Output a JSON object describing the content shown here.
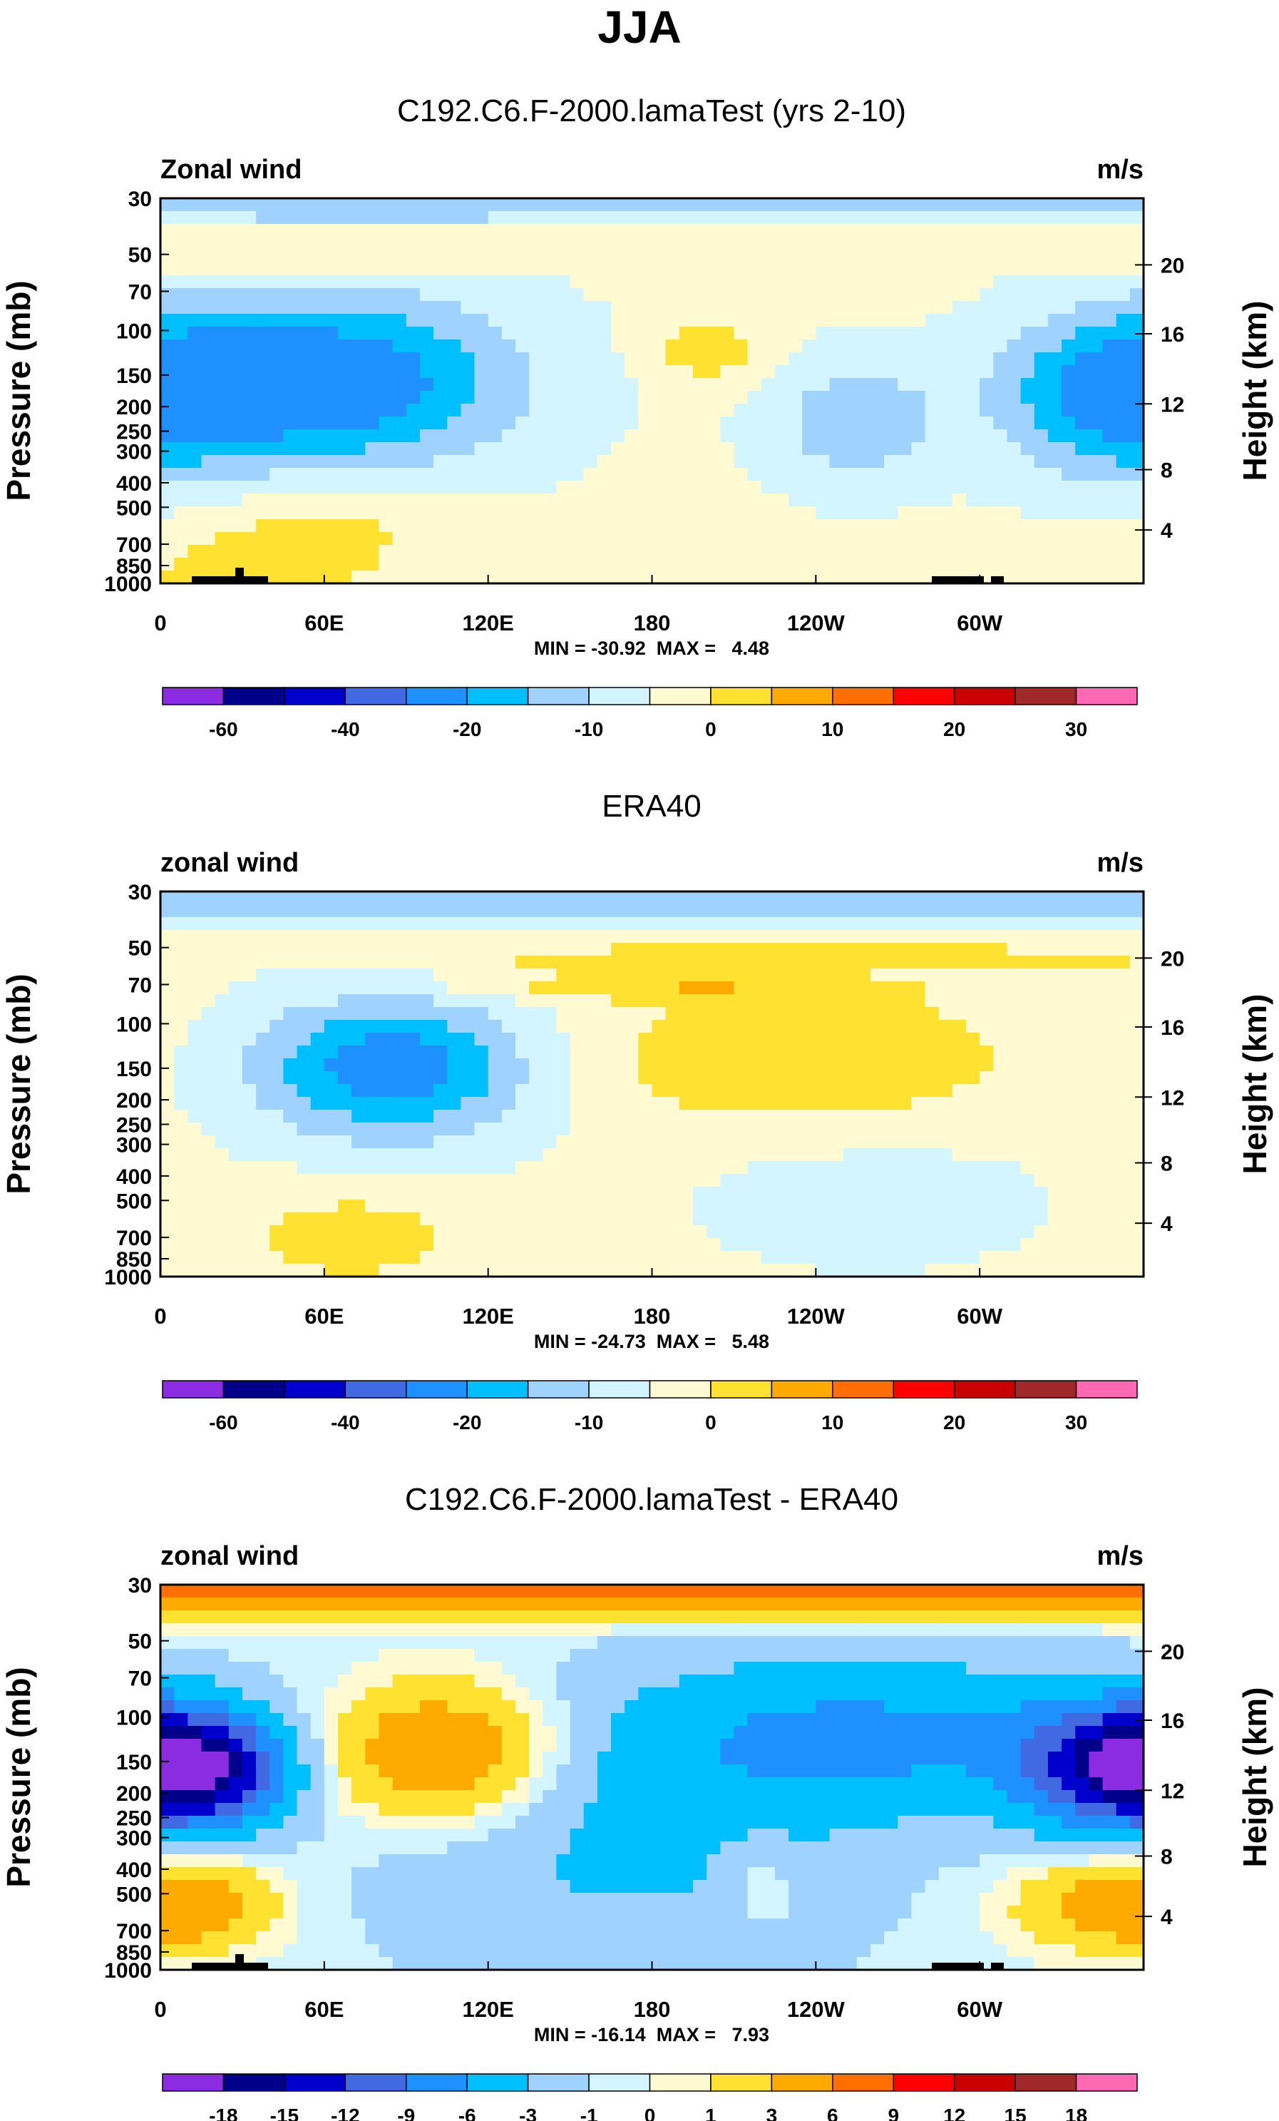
{
  "title": "JJA",
  "colors": {
    "main": [
      "#8b2be2",
      "#00008b",
      "#0000cd",
      "#4169e1",
      "#1e90ff",
      "#00bfff",
      "#a0d2ff",
      "#d2f5ff",
      "#fffad2",
      "#ffe132",
      "#ffaa00",
      "#ff6e00",
      "#ff0000",
      "#c80000",
      "#a02828",
      "#ff69b4"
    ],
    "diff": [
      "#8b2be2",
      "#00008b",
      "#0000cd",
      "#4169e1",
      "#1e90ff",
      "#00bfff",
      "#a0d2ff",
      "#d2f5ff",
      "#fffad2",
      "#ffe132",
      "#ffaa00",
      "#ff6e00",
      "#ff0000",
      "#c80000",
      "#a02828",
      "#ff69b4"
    ]
  },
  "chart_data": [
    {
      "type": "contour",
      "title": "C192.C6.F-2000.lamaTest (yrs 2-10)",
      "left_label": "Zonal wind",
      "right_label": "m/s",
      "ylabel": "Pressure (mb)",
      "ylabel_right": "Height (km)",
      "x_ticks": [
        "0",
        "60E",
        "120E",
        "180",
        "120W",
        "60W"
      ],
      "y_ticks": [
        "30",
        "50",
        "70",
        "100",
        "150",
        "200",
        "250",
        "300",
        "400",
        "500",
        "700",
        "850",
        "1000"
      ],
      "height_ticks": [
        "20",
        "16",
        "12",
        "8",
        "4"
      ],
      "stats": "MIN = -30.92  MAX =   4.48",
      "colorbar_labels": [
        "-60",
        "-40",
        "-20",
        "-10",
        "0",
        "10",
        "20",
        "30"
      ],
      "levels": [
        -70,
        -60,
        -50,
        -40,
        -30,
        -20,
        -15,
        -10,
        -5,
        0,
        5,
        10,
        15,
        20,
        25,
        30
      ],
      "min": -30.92,
      "max": 4.48
    },
    {
      "type": "contour",
      "title": "ERA40",
      "left_label": "zonal wind",
      "right_label": "m/s",
      "ylabel": "Pressure (mb)",
      "ylabel_right": "Height (km)",
      "x_ticks": [
        "0",
        "60E",
        "120E",
        "180",
        "120W",
        "60W"
      ],
      "y_ticks": [
        "30",
        "50",
        "70",
        "100",
        "150",
        "200",
        "250",
        "300",
        "400",
        "500",
        "700",
        "850",
        "1000"
      ],
      "height_ticks": [
        "20",
        "16",
        "12",
        "8",
        "4"
      ],
      "stats": "MIN = -24.73  MAX =   5.48",
      "colorbar_labels": [
        "-60",
        "-40",
        "-20",
        "-10",
        "0",
        "10",
        "20",
        "30"
      ],
      "levels": [
        -70,
        -60,
        -50,
        -40,
        -30,
        -20,
        -15,
        -10,
        -5,
        0,
        5,
        10,
        15,
        20,
        25,
        30
      ],
      "min": -24.73,
      "max": 5.48
    },
    {
      "type": "contour",
      "title": "C192.C6.F-2000.lamaTest - ERA40",
      "left_label": "zonal wind",
      "right_label": "m/s",
      "ylabel": "Pressure (mb)",
      "ylabel_right": "Height (km)",
      "x_ticks": [
        "0",
        "60E",
        "120E",
        "180",
        "120W",
        "60W"
      ],
      "y_ticks": [
        "30",
        "50",
        "70",
        "100",
        "150",
        "200",
        "250",
        "300",
        "400",
        "500",
        "700",
        "850",
        "1000"
      ],
      "height_ticks": [
        "20",
        "16",
        "12",
        "8",
        "4"
      ],
      "stats": "MIN = -16.14  MAX =   7.93",
      "colorbar_labels": [
        "-18",
        "-15",
        "-12",
        "-9",
        "-6",
        "-3",
        "-1",
        "0",
        "1",
        "3",
        "6",
        "9",
        "12",
        "15",
        "18"
      ],
      "levels": [
        -21,
        -18,
        -15,
        -12,
        -9,
        -6,
        -3,
        -1,
        0,
        1,
        3,
        6,
        9,
        12,
        15,
        18
      ],
      "min": -16.14,
      "max": 7.93
    }
  ]
}
